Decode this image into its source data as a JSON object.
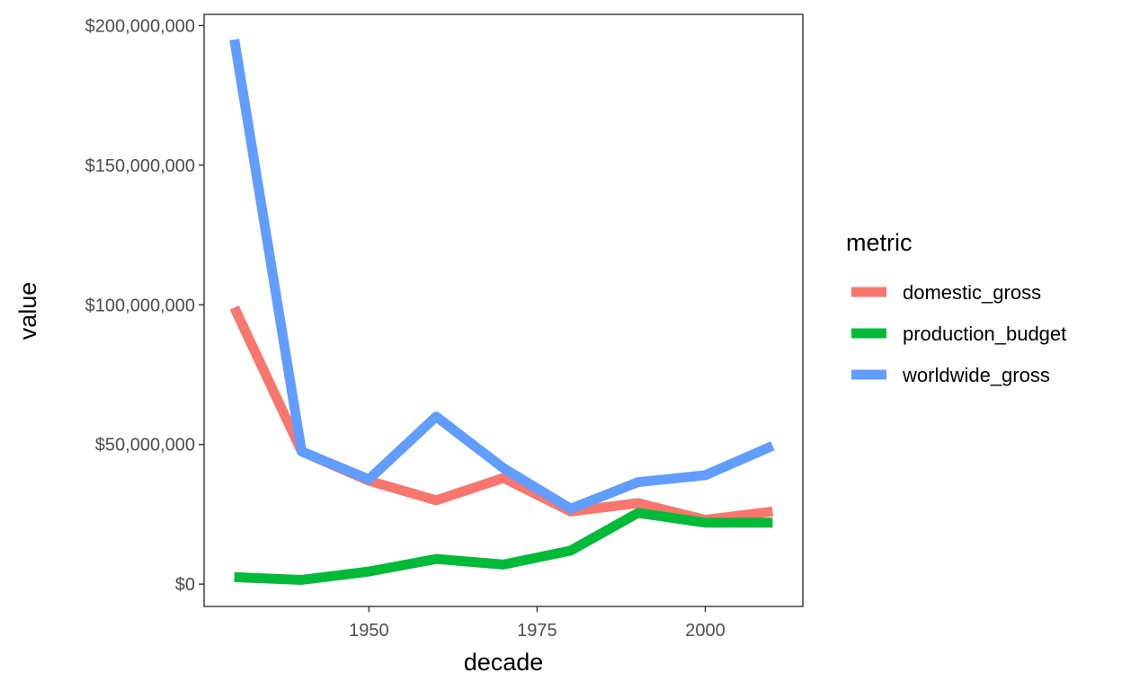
{
  "chart_data": {
    "type": "line",
    "title": "",
    "xlabel": "decade",
    "ylabel": "value",
    "x": [
      1930,
      1940,
      1950,
      1960,
      1970,
      1980,
      1990,
      2000,
      2010
    ],
    "xlim": [
      1925.5,
      2014.5
    ],
    "ylim": [
      -8000000,
      204000000
    ],
    "x_ticks": [
      1950,
      1975,
      2000
    ],
    "x_tick_labels": [
      "1950",
      "1975",
      "2000"
    ],
    "y_ticks": [
      0,
      50000000,
      100000000,
      150000000,
      200000000
    ],
    "y_tick_labels": [
      "$0",
      "$50,000,000",
      "$100,000,000",
      "$150,000,000",
      "$200,000,000"
    ],
    "grid": false,
    "legend": {
      "title": "metric",
      "placement": "right"
    },
    "series": [
      {
        "name": "domestic_gross",
        "color": "#F8766D",
        "values": [
          99000000,
          47500000,
          37000000,
          30000000,
          38000000,
          26000000,
          29000000,
          23000000,
          26000000
        ]
      },
      {
        "name": "production_budget",
        "color": "#00BA38",
        "values": [
          2500000,
          1500000,
          4500000,
          9000000,
          7000000,
          12000000,
          25500000,
          22000000,
          22000000
        ]
      },
      {
        "name": "worldwide_gross",
        "color": "#619CFF",
        "values": [
          195000000,
          47500000,
          37500000,
          60000000,
          41500000,
          27000000,
          36500000,
          39000000,
          49500000
        ]
      }
    ]
  }
}
